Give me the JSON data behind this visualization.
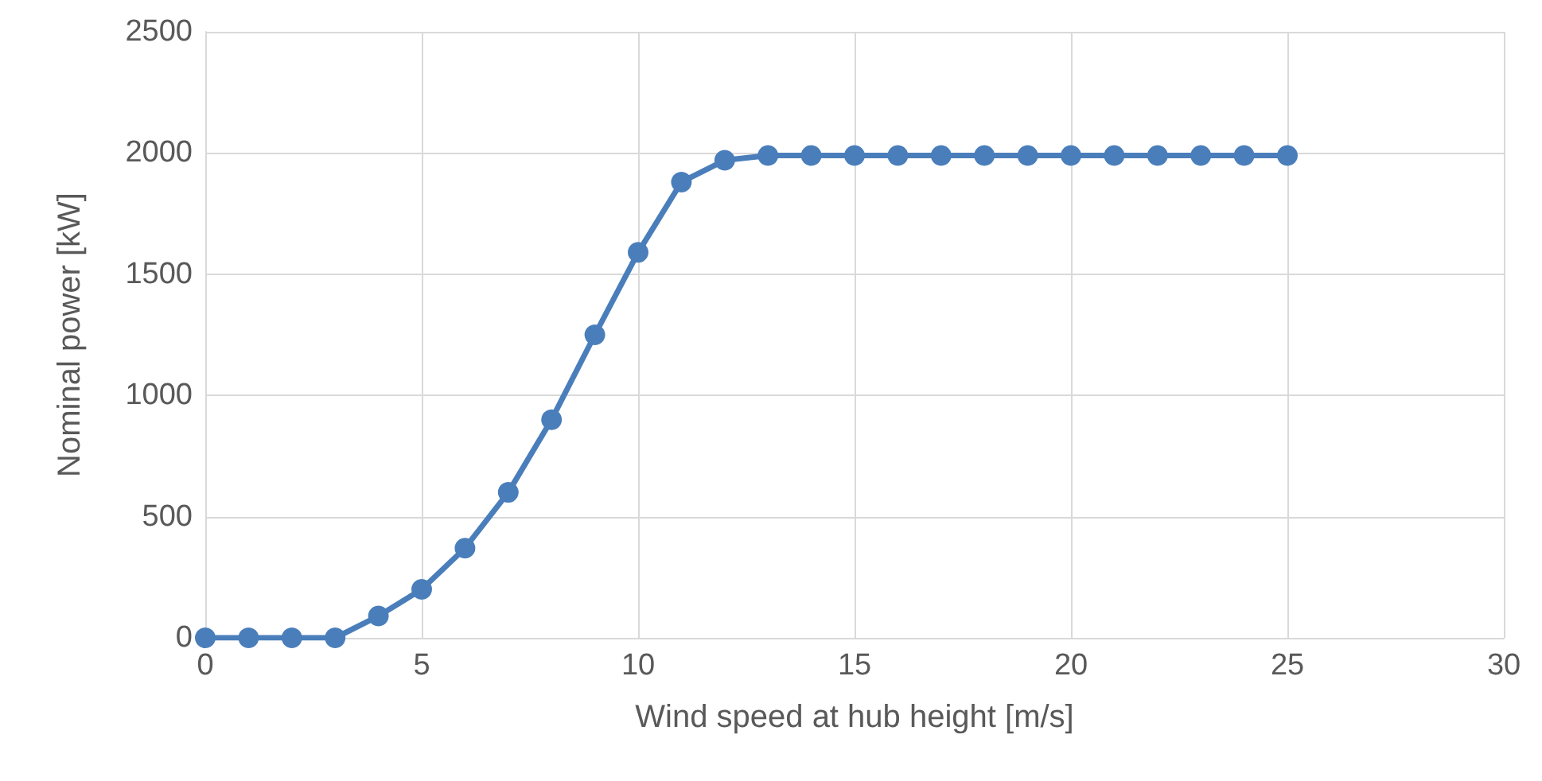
{
  "chart_data": {
    "type": "line",
    "xlabel": "Wind speed at hub height [m/s]",
    "ylabel": "Nominal power [kW]",
    "x": [
      0,
      1,
      2,
      3,
      4,
      5,
      6,
      7,
      8,
      9,
      10,
      11,
      12,
      13,
      14,
      15,
      16,
      17,
      18,
      19,
      20,
      21,
      22,
      23,
      24,
      25
    ],
    "series": [
      {
        "color": "#4a7ebb",
        "values": [
          0,
          0,
          0,
          0,
          90,
          200,
          370,
          600,
          900,
          1250,
          1590,
          1880,
          1970,
          1990,
          1990,
          1990,
          1990,
          1990,
          1990,
          1990,
          1990,
          1990,
          1990,
          1990,
          1990,
          1990
        ]
      }
    ],
    "xlim": [
      0,
      30
    ],
    "xticks": [
      0,
      5,
      10,
      15,
      20,
      25,
      30
    ],
    "ylim": [
      0,
      2500
    ],
    "yticks": [
      0,
      500,
      1000,
      1500,
      2000,
      2500
    ],
    "grid": true,
    "marker": "circle",
    "line_style": "solid"
  }
}
